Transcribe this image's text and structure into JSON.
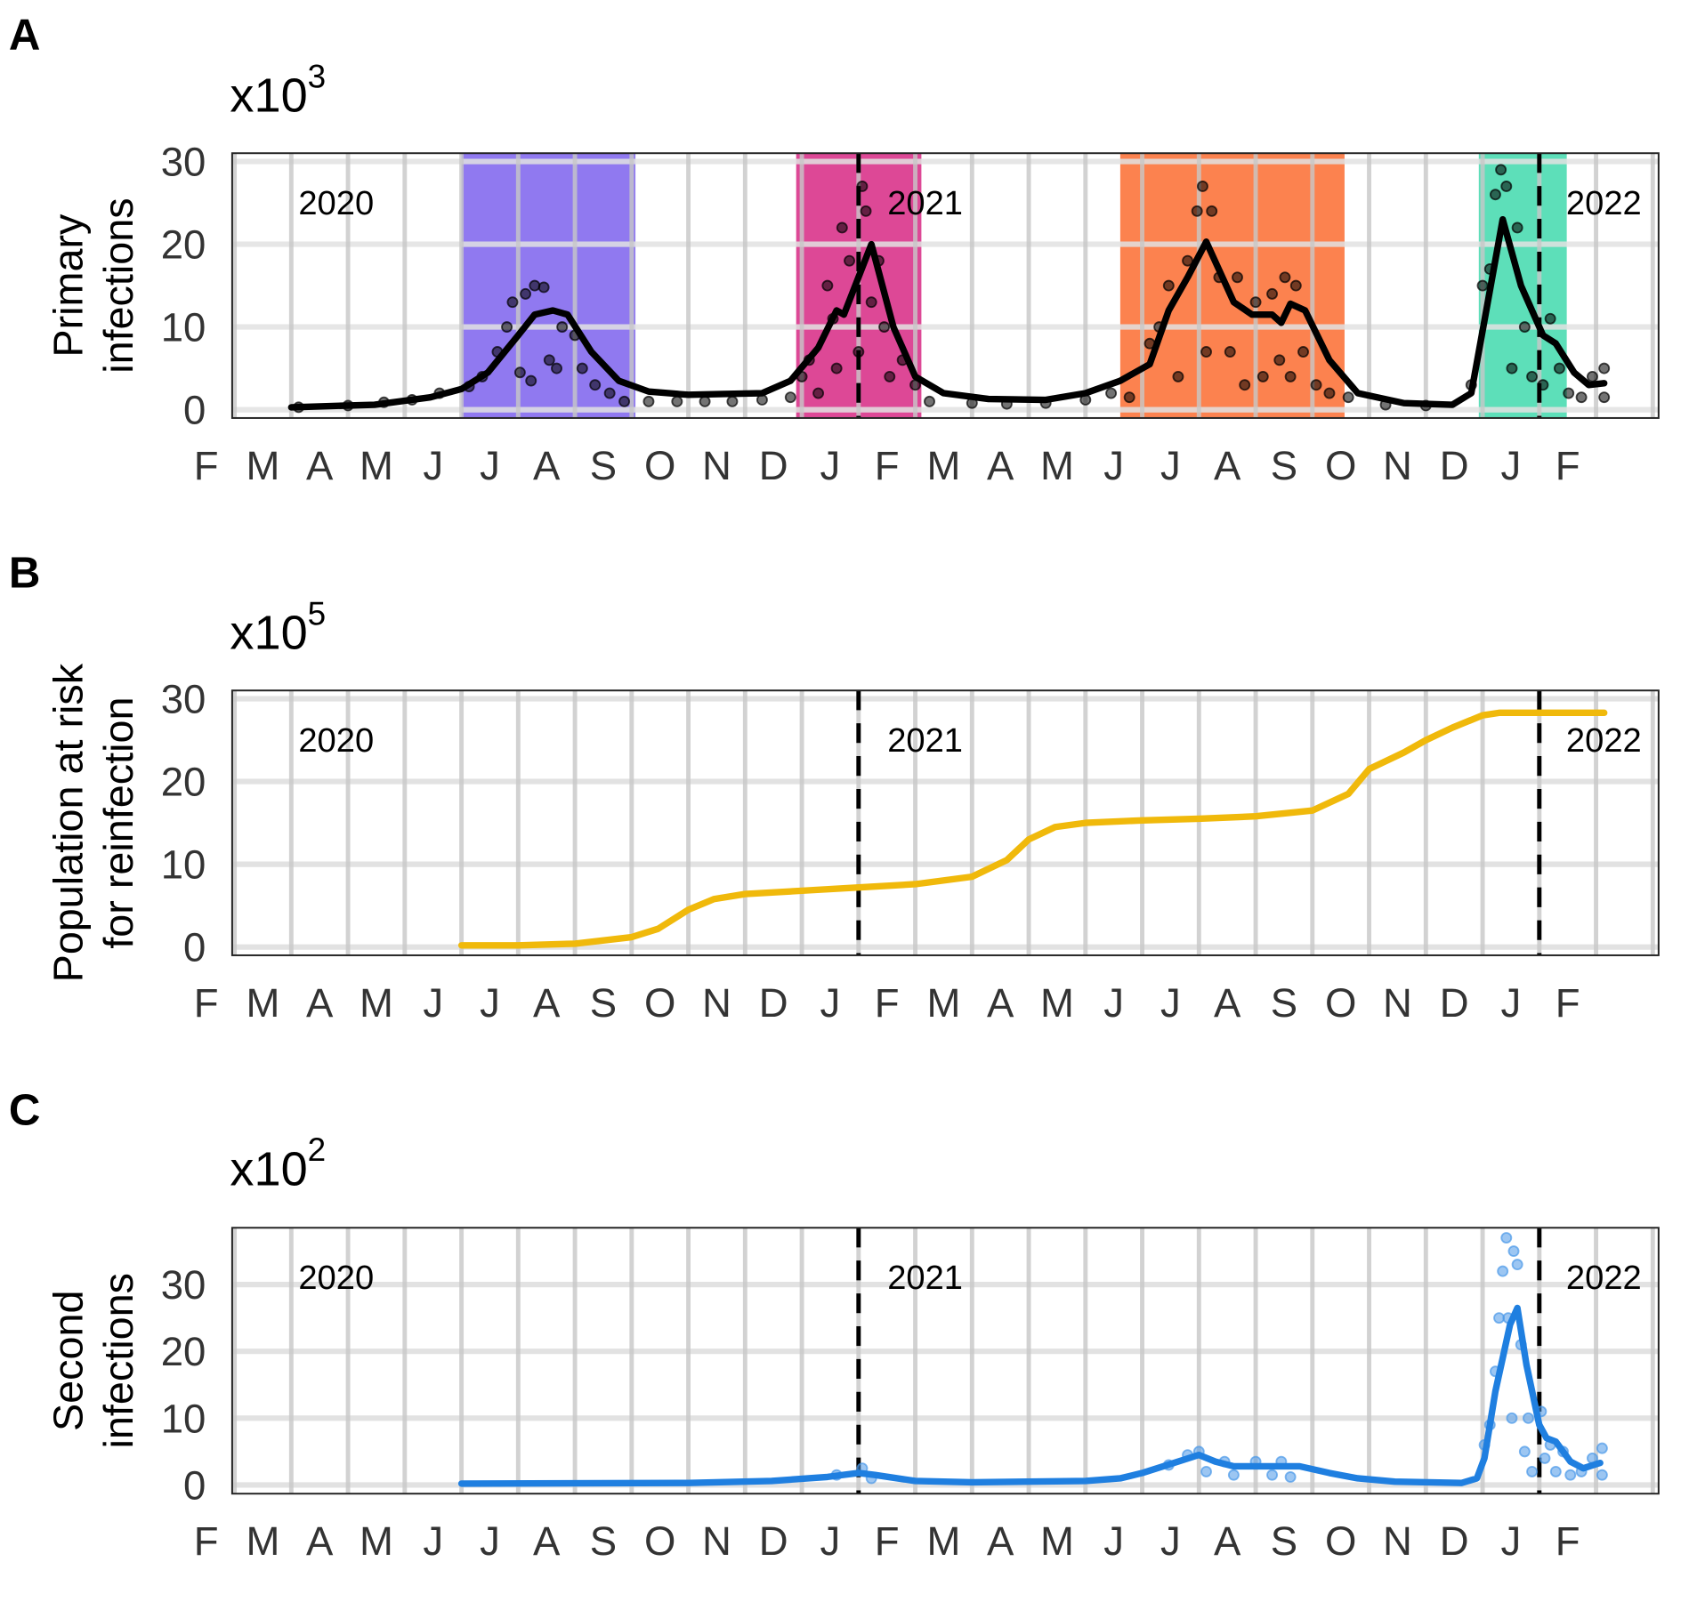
{
  "chart_data": [
    {
      "type": "line",
      "panel_label": "A",
      "multiplier_label": {
        "base": "x10",
        "exponent": "3"
      },
      "ylabel": [
        "Primary",
        "infections"
      ],
      "ylim": [
        -1,
        31
      ],
      "yticks": [
        "0",
        "10",
        "20",
        "30"
      ],
      "xlim": [
        "2020-01-30",
        "2022-03-04"
      ],
      "xtick_labels": [
        "F",
        "M",
        "A",
        "M",
        "J",
        "J",
        "A",
        "S",
        "O",
        "N",
        "D",
        "J",
        "F",
        "M",
        "A",
        "M",
        "J",
        "J",
        "A",
        "S",
        "O",
        "N",
        "D",
        "J",
        "F"
      ],
      "year_labels": [
        "2020",
        "2021",
        "2022"
      ],
      "year_dividers": [
        "2021-01-01",
        "2022-01-01"
      ],
      "grid": true,
      "line_color": "#000000",
      "point_color": "#000000",
      "shaded_periods": [
        {
          "start": "2020-06-01",
          "end": "2020-09-03",
          "color": "#9079f0"
        },
        {
          "start": "2020-11-28",
          "end": "2021-02-04",
          "color": "#dd4896"
        },
        {
          "start": "2021-05-20",
          "end": "2021-09-18",
          "color": "#fc824f"
        },
        {
          "start": "2021-11-29",
          "end": "2022-01-16",
          "color": "#5ddfb9"
        }
      ],
      "line": [
        [
          "2020-03-01",
          0.3
        ],
        [
          "2020-04-15",
          0.6
        ],
        [
          "2020-05-15",
          1.5
        ],
        [
          "2020-06-01",
          2.5
        ],
        [
          "2020-06-15",
          4.5
        ],
        [
          "2020-07-01",
          9
        ],
        [
          "2020-07-10",
          11.5
        ],
        [
          "2020-07-20",
          12
        ],
        [
          "2020-07-28",
          11.5
        ],
        [
          "2020-08-10",
          7
        ],
        [
          "2020-08-25",
          3.5
        ],
        [
          "2020-09-10",
          2.2
        ],
        [
          "2020-10-01",
          1.8
        ],
        [
          "2020-10-20",
          1.9
        ],
        [
          "2020-11-10",
          2
        ],
        [
          "2020-11-25",
          3.5
        ],
        [
          "2020-12-10",
          7.5
        ],
        [
          "2020-12-20",
          12
        ],
        [
          "2020-12-24",
          11.5
        ],
        [
          "2021-01-08",
          20
        ],
        [
          "2021-01-20",
          10
        ],
        [
          "2021-02-01",
          4
        ],
        [
          "2021-02-15",
          2
        ],
        [
          "2021-03-10",
          1.3
        ],
        [
          "2021-04-10",
          1.2
        ],
        [
          "2021-05-01",
          2
        ],
        [
          "2021-05-20",
          3.5
        ],
        [
          "2021-06-05",
          5.5
        ],
        [
          "2021-06-15",
          12
        ],
        [
          "2021-06-25",
          16
        ],
        [
          "2021-07-05",
          20.3
        ],
        [
          "2021-07-20",
          13
        ],
        [
          "2021-07-30",
          11.5
        ],
        [
          "2021-08-10",
          11.5
        ],
        [
          "2021-08-15",
          10.5
        ],
        [
          "2021-08-20",
          12.8
        ],
        [
          "2021-08-28",
          12
        ],
        [
          "2021-09-10",
          6
        ],
        [
          "2021-09-25",
          2
        ],
        [
          "2021-10-20",
          0.8
        ],
        [
          "2021-11-15",
          0.6
        ],
        [
          "2021-11-25",
          2
        ],
        [
          "2021-12-03",
          12
        ],
        [
          "2021-12-12",
          23
        ],
        [
          "2021-12-22",
          15
        ],
        [
          "2022-01-03",
          9
        ],
        [
          "2022-01-10",
          8
        ],
        [
          "2022-01-20",
          4.5
        ],
        [
          "2022-01-28",
          3
        ],
        [
          "2022-02-05",
          3.2
        ]
      ],
      "points": [
        [
          "2020-03-05",
          0.3
        ],
        [
          "2020-04-01",
          0.5
        ],
        [
          "2020-04-20",
          0.9
        ],
        [
          "2020-05-05",
          1.2
        ],
        [
          "2020-05-20",
          2
        ],
        [
          "2020-06-05",
          2.8
        ],
        [
          "2020-06-12",
          4
        ],
        [
          "2020-06-20",
          7
        ],
        [
          "2020-06-25",
          10
        ],
        [
          "2020-06-28",
          13
        ],
        [
          "2020-07-05",
          14
        ],
        [
          "2020-07-10",
          15
        ],
        [
          "2020-07-15",
          14.8
        ],
        [
          "2020-07-18",
          6
        ],
        [
          "2020-07-22",
          5
        ],
        [
          "2020-07-08",
          3.5
        ],
        [
          "2020-07-02",
          4.5
        ],
        [
          "2020-07-25",
          10
        ],
        [
          "2020-08-01",
          9
        ],
        [
          "2020-08-05",
          5
        ],
        [
          "2020-08-12",
          3
        ],
        [
          "2020-08-20",
          2
        ],
        [
          "2020-08-28",
          1
        ],
        [
          "2020-09-10",
          1
        ],
        [
          "2020-09-25",
          1
        ],
        [
          "2020-10-10",
          1
        ],
        [
          "2020-10-25",
          1
        ],
        [
          "2020-11-10",
          1.2
        ],
        [
          "2020-11-25",
          1.5
        ],
        [
          "2020-12-01",
          4
        ],
        [
          "2020-12-05",
          6
        ],
        [
          "2020-12-10",
          2
        ],
        [
          "2020-12-15",
          15
        ],
        [
          "2020-12-18",
          11
        ],
        [
          "2020-12-20",
          5
        ],
        [
          "2020-12-23",
          22
        ],
        [
          "2020-12-27",
          18
        ],
        [
          "2021-01-01",
          7
        ],
        [
          "2021-01-03",
          27
        ],
        [
          "2021-01-05",
          24
        ],
        [
          "2021-01-08",
          13
        ],
        [
          "2021-01-12",
          18
        ],
        [
          "2021-01-15",
          10
        ],
        [
          "2021-01-18",
          4
        ],
        [
          "2021-01-25",
          6
        ],
        [
          "2021-02-01",
          3
        ],
        [
          "2021-02-08",
          1
        ],
        [
          "2021-03-01",
          0.8
        ],
        [
          "2021-03-20",
          0.7
        ],
        [
          "2021-04-10",
          0.8
        ],
        [
          "2021-05-01",
          1.2
        ],
        [
          "2021-05-15",
          2
        ],
        [
          "2021-05-25",
          1.5
        ],
        [
          "2021-06-05",
          8
        ],
        [
          "2021-06-10",
          10
        ],
        [
          "2021-06-15",
          15
        ],
        [
          "2021-06-20",
          4
        ],
        [
          "2021-06-25",
          18
        ],
        [
          "2021-06-30",
          24
        ],
        [
          "2021-07-03",
          27
        ],
        [
          "2021-07-05",
          7
        ],
        [
          "2021-07-08",
          24
        ],
        [
          "2021-07-12",
          16
        ],
        [
          "2021-07-18",
          7
        ],
        [
          "2021-07-22",
          16
        ],
        [
          "2021-07-26",
          3
        ],
        [
          "2021-08-01",
          13
        ],
        [
          "2021-08-05",
          4
        ],
        [
          "2021-08-10",
          14
        ],
        [
          "2021-08-14",
          6
        ],
        [
          "2021-08-17",
          16
        ],
        [
          "2021-08-20",
          4
        ],
        [
          "2021-08-23",
          15
        ],
        [
          "2021-08-27",
          7
        ],
        [
          "2021-09-03",
          3
        ],
        [
          "2021-09-10",
          2
        ],
        [
          "2021-09-20",
          1.5
        ],
        [
          "2021-10-10",
          0.6
        ],
        [
          "2021-11-01",
          0.5
        ],
        [
          "2021-11-25",
          3
        ],
        [
          "2021-12-01",
          15
        ],
        [
          "2021-12-05",
          17
        ],
        [
          "2021-12-08",
          26
        ],
        [
          "2021-12-11",
          29
        ],
        [
          "2021-12-14",
          27
        ],
        [
          "2021-12-17",
          5
        ],
        [
          "2021-12-20",
          22
        ],
        [
          "2021-12-24",
          10
        ],
        [
          "2021-12-28",
          4
        ],
        [
          "2022-01-03",
          3
        ],
        [
          "2022-01-07",
          11
        ],
        [
          "2022-01-12",
          5
        ],
        [
          "2022-01-17",
          2
        ],
        [
          "2022-01-24",
          1.5
        ],
        [
          "2022-01-30",
          4
        ],
        [
          "2022-02-05",
          5
        ],
        [
          "2022-02-05",
          1.5
        ]
      ]
    },
    {
      "type": "line",
      "panel_label": "B",
      "multiplier_label": {
        "base": "x10",
        "exponent": "5"
      },
      "ylabel": [
        "Population at risk",
        "for reinfection"
      ],
      "ylim": [
        -1,
        31
      ],
      "yticks": [
        "0",
        "10",
        "20",
        "30"
      ],
      "xlim": [
        "2020-01-30",
        "2022-03-04"
      ],
      "xtick_labels": [
        "F",
        "M",
        "A",
        "M",
        "J",
        "J",
        "A",
        "S",
        "O",
        "N",
        "D",
        "J",
        "F",
        "M",
        "A",
        "M",
        "J",
        "J",
        "A",
        "S",
        "O",
        "N",
        "D",
        "J",
        "F"
      ],
      "year_labels": [
        "2020",
        "2021",
        "2022"
      ],
      "year_dividers": [
        "2021-01-01",
        "2022-01-01"
      ],
      "grid": true,
      "line_color": "#f0b90b",
      "line": [
        [
          "2020-06-01",
          0.2
        ],
        [
          "2020-07-01",
          0.2
        ],
        [
          "2020-08-01",
          0.4
        ],
        [
          "2020-09-01",
          1.2
        ],
        [
          "2020-09-15",
          2.2
        ],
        [
          "2020-10-01",
          4.5
        ],
        [
          "2020-10-15",
          5.8
        ],
        [
          "2020-11-01",
          6.4
        ],
        [
          "2020-12-01",
          6.8
        ],
        [
          "2021-01-01",
          7.2
        ],
        [
          "2021-02-01",
          7.6
        ],
        [
          "2021-03-01",
          8.5
        ],
        [
          "2021-03-20",
          10.5
        ],
        [
          "2021-04-01",
          13
        ],
        [
          "2021-04-15",
          14.5
        ],
        [
          "2021-05-01",
          15
        ],
        [
          "2021-06-01",
          15.3
        ],
        [
          "2021-07-01",
          15.5
        ],
        [
          "2021-08-01",
          15.8
        ],
        [
          "2021-09-01",
          16.5
        ],
        [
          "2021-09-20",
          18.5
        ],
        [
          "2021-10-01",
          21.5
        ],
        [
          "2021-10-20",
          23.5
        ],
        [
          "2021-11-01",
          25
        ],
        [
          "2021-11-15",
          26.5
        ],
        [
          "2021-12-01",
          28
        ],
        [
          "2021-12-10",
          28.3
        ],
        [
          "2022-02-05",
          28.3
        ]
      ]
    },
    {
      "type": "line",
      "panel_label": "C",
      "multiplier_label": {
        "base": "x10",
        "exponent": "2"
      },
      "ylabel": [
        "Second",
        "infections"
      ],
      "ylim": [
        -1.3,
        38.5
      ],
      "yticks": [
        "0",
        "10",
        "20",
        "30"
      ],
      "xlim": [
        "2020-01-30",
        "2022-03-04"
      ],
      "xtick_labels": [
        "F",
        "M",
        "A",
        "M",
        "J",
        "J",
        "A",
        "S",
        "O",
        "N",
        "D",
        "J",
        "F",
        "M",
        "A",
        "M",
        "J",
        "J",
        "A",
        "S",
        "O",
        "N",
        "D",
        "J",
        "F"
      ],
      "year_labels": [
        "2020",
        "2021",
        "2022"
      ],
      "year_dividers": [
        "2021-01-01",
        "2022-01-01"
      ],
      "grid": true,
      "line_color": "#1f7fe0",
      "point_color": "#4a98e8",
      "line": [
        [
          "2020-06-01",
          0.2
        ],
        [
          "2020-10-01",
          0.3
        ],
        [
          "2020-11-15",
          0.6
        ],
        [
          "2020-12-15",
          1.2
        ],
        [
          "2021-01-01",
          1.8
        ],
        [
          "2021-01-10",
          1.5
        ],
        [
          "2021-02-01",
          0.6
        ],
        [
          "2021-03-01",
          0.4
        ],
        [
          "2021-05-01",
          0.6
        ],
        [
          "2021-05-20",
          1
        ],
        [
          "2021-06-01",
          1.8
        ],
        [
          "2021-06-20",
          3.5
        ],
        [
          "2021-07-01",
          4.5
        ],
        [
          "2021-07-10",
          3.5
        ],
        [
          "2021-07-20",
          2.8
        ],
        [
          "2021-08-15",
          2.8
        ],
        [
          "2021-08-25",
          2.8
        ],
        [
          "2021-09-10",
          1.8
        ],
        [
          "2021-09-25",
          1
        ],
        [
          "2021-10-15",
          0.5
        ],
        [
          "2021-11-20",
          0.3
        ],
        [
          "2021-11-28",
          1
        ],
        [
          "2021-12-02",
          4
        ],
        [
          "2021-12-08",
          14
        ],
        [
          "2021-12-16",
          24
        ],
        [
          "2021-12-20",
          26.5
        ],
        [
          "2021-12-25",
          18
        ],
        [
          "2022-01-01",
          9
        ],
        [
          "2022-01-05",
          7
        ],
        [
          "2022-01-10",
          6.5
        ],
        [
          "2022-01-18",
          3.5
        ],
        [
          "2022-01-25",
          2.5
        ],
        [
          "2022-02-03",
          3.3
        ]
      ],
      "points": [
        [
          "2020-12-20",
          1.5
        ],
        [
          "2021-01-03",
          2.5
        ],
        [
          "2021-01-08",
          1
        ],
        [
          "2021-06-15",
          3
        ],
        [
          "2021-06-25",
          4.5
        ],
        [
          "2021-07-01",
          5
        ],
        [
          "2021-07-05",
          2
        ],
        [
          "2021-07-15",
          3.5
        ],
        [
          "2021-07-20",
          1.5
        ],
        [
          "2021-08-01",
          3.5
        ],
        [
          "2021-08-10",
          1.5
        ],
        [
          "2021-08-15",
          3.5
        ],
        [
          "2021-08-20",
          1.2
        ],
        [
          "2021-12-02",
          6
        ],
        [
          "2021-12-05",
          9
        ],
        [
          "2021-12-08",
          17
        ],
        [
          "2021-12-10",
          25
        ],
        [
          "2021-12-12",
          32
        ],
        [
          "2021-12-14",
          37
        ],
        [
          "2021-12-15",
          25
        ],
        [
          "2021-12-17",
          10
        ],
        [
          "2021-12-18",
          35
        ],
        [
          "2021-12-20",
          33
        ],
        [
          "2021-12-22",
          21
        ],
        [
          "2021-12-24",
          5
        ],
        [
          "2021-12-26",
          10
        ],
        [
          "2021-12-28",
          2
        ],
        [
          "2022-01-02",
          11
        ],
        [
          "2022-01-04",
          4
        ],
        [
          "2022-01-07",
          6
        ],
        [
          "2022-01-10",
          2
        ],
        [
          "2022-01-14",
          5
        ],
        [
          "2022-01-18",
          1.5
        ],
        [
          "2022-01-24",
          2
        ],
        [
          "2022-01-30",
          4
        ],
        [
          "2022-02-04",
          5.5
        ],
        [
          "2022-02-04",
          1.5
        ]
      ]
    }
  ]
}
